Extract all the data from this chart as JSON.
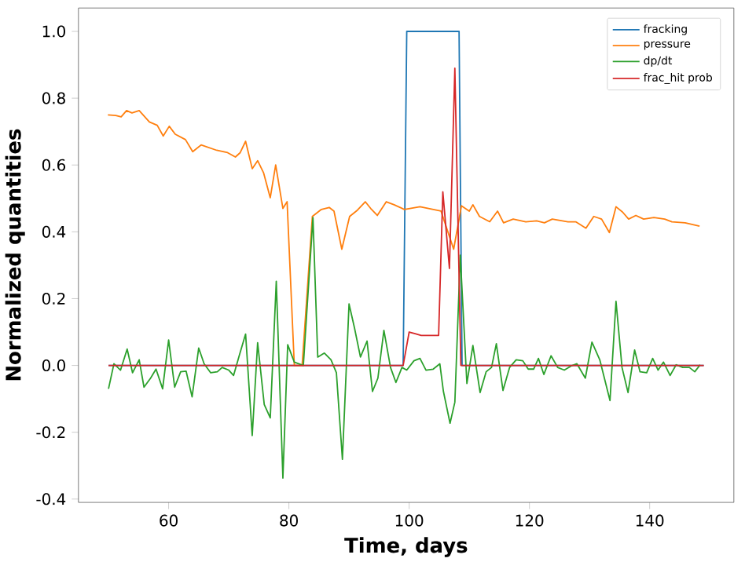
{
  "chart_data": {
    "type": "line",
    "xlabel": "Time, days",
    "ylabel": "Normalized quantities",
    "xlim": [
      45,
      154
    ],
    "ylim": [
      -0.41,
      1.07
    ],
    "xticks": [
      60,
      80,
      100,
      120,
      140
    ],
    "yticks": [
      -0.4,
      -0.2,
      {
        "value": 0,
        "label": "0.0"
      },
      0.2,
      0.4,
      0.6,
      0.8,
      {
        "value": 1,
        "label": "1.0"
      }
    ],
    "legend": "top right",
    "grid": false,
    "series": [
      {
        "name": "fracking",
        "color": "#1f77b4",
        "x": [
          50,
          99,
          99.6,
          108.3,
          108.8,
          149
        ],
        "values": [
          0,
          0,
          1,
          1,
          0,
          0
        ]
      },
      {
        "name": "pressure",
        "color": "#ff7f0e",
        "x": [
          49.9,
          51.2,
          52.1,
          53,
          53.9,
          55.1,
          56.8,
          58.1,
          59.1,
          60.1,
          61.1,
          62.8,
          64,
          65.4,
          68,
          69.8,
          71.1,
          71.9,
          72.8,
          73.9,
          74.8,
          75.8,
          76.9,
          77.8,
          79,
          79.7,
          80.9,
          82.2,
          83.9,
          85.4,
          86.7,
          87.5,
          88.8,
          90.1,
          91.4,
          92.7,
          93.6,
          94.7,
          96.2,
          97.5,
          99.2,
          101.8,
          105.3,
          107.4,
          108.7,
          110,
          110.6,
          111.7,
          113.4,
          114.7,
          115.7,
          117.3,
          119.4,
          121.2,
          122.5,
          123.8,
          126.4,
          127.7,
          129.4,
          130.7,
          132,
          133.3,
          134.4,
          135.5,
          136.5,
          137.7,
          139,
          140.7,
          142.5,
          143.7,
          145.9,
          148.3
        ],
        "values": [
          0.75,
          0.748,
          0.744,
          0.763,
          0.756,
          0.763,
          0.729,
          0.719,
          0.687,
          0.716,
          0.692,
          0.676,
          0.64,
          0.66,
          0.644,
          0.637,
          0.624,
          0.637,
          0.671,
          0.589,
          0.613,
          0.576,
          0.502,
          0.6,
          0.47,
          0.49,
          0.0,
          0.0,
          0.446,
          0.467,
          0.473,
          0.462,
          0.348,
          0.446,
          0.465,
          0.49,
          0.47,
          0.449,
          0.49,
          0.481,
          0.467,
          0.475,
          0.462,
          0.348,
          0.478,
          0.462,
          0.481,
          0.446,
          0.43,
          0.462,
          0.427,
          0.438,
          0.43,
          0.433,
          0.427,
          0.438,
          0.43,
          0.43,
          0.411,
          0.446,
          0.438,
          0.398,
          0.475,
          0.459,
          0.438,
          0.449,
          0.438,
          0.443,
          0.438,
          0.43,
          0.427,
          0.417
        ]
      },
      {
        "name": "dp/dt",
        "color": "#2ca02c",
        "x": [
          50,
          50.9,
          52,
          53.1,
          54,
          55.1,
          55.9,
          57,
          57.9,
          59,
          60,
          61,
          62,
          62.9,
          63.9,
          65,
          65.9,
          67,
          68.1,
          68.9,
          70,
          70.8,
          71.8,
          72.8,
          73.9,
          74.8,
          75.9,
          76.9,
          77.9,
          79,
          79.8,
          80.9,
          82.4,
          84,
          84.8,
          85.9,
          87,
          87.9,
          88.9,
          90,
          90.9,
          91.9,
          93,
          93.9,
          94.8,
          95.8,
          96.9,
          97.8,
          98.8,
          99.6,
          100.8,
          101.8,
          102.8,
          104,
          105.1,
          105.7,
          106.8,
          107.6,
          108.5,
          109.6,
          110.6,
          111.8,
          112.8,
          113.7,
          114.5,
          115.6,
          116.7,
          117.8,
          118.9,
          119.8,
          120.7,
          121.5,
          122.4,
          123.6,
          124.7,
          125.8,
          126.9,
          127.9,
          129.3,
          130.4,
          131.7,
          133.4,
          134.4,
          135.4,
          136.4,
          137.5,
          138.4,
          139.5,
          140.5,
          141.4,
          142.3,
          143.4,
          144.4,
          145.5,
          146.6,
          147.5,
          148.4
        ],
        "values": [
          -0.07,
          0.005,
          -0.014,
          0.049,
          -0.022,
          0.017,
          -0.065,
          -0.038,
          -0.011,
          -0.07,
          0.076,
          -0.065,
          -0.019,
          -0.017,
          -0.094,
          0.052,
          0.005,
          -0.022,
          -0.019,
          -0.006,
          -0.014,
          -0.03,
          0.033,
          0.094,
          -0.21,
          0.068,
          -0.117,
          -0.157,
          0.252,
          -0.337,
          0.062,
          0.01,
          0.0,
          0.443,
          0.025,
          0.037,
          0.017,
          -0.022,
          -0.281,
          0.184,
          0.113,
          0.025,
          0.073,
          -0.078,
          -0.038,
          0.105,
          -0.006,
          -0.051,
          -0.006,
          -0.014,
          0.014,
          0.021,
          -0.014,
          -0.011,
          0.005,
          -0.078,
          -0.173,
          -0.11,
          0.33,
          -0.054,
          0.06,
          -0.081,
          -0.019,
          -0.006,
          0.065,
          -0.075,
          -0.006,
          0.017,
          0.014,
          -0.011,
          -0.011,
          0.021,
          -0.027,
          0.029,
          -0.006,
          -0.014,
          -0.002,
          0.005,
          -0.038,
          0.07,
          0.017,
          -0.105,
          0.192,
          -0.006,
          -0.081,
          0.046,
          -0.019,
          -0.022,
          0.021,
          -0.014,
          0.01,
          -0.03,
          0.002,
          -0.006,
          -0.006,
          -0.019,
          0.002
        ]
      },
      {
        "name": "frac_hit prob",
        "color": "#d62728",
        "x": [
          50,
          99,
          100,
          101,
          102,
          103,
          104,
          104.9,
          105.6,
          106.7,
          107.6,
          108.6,
          149
        ],
        "values": [
          0,
          0,
          0.1,
          0.095,
          0.09,
          0.09,
          0.09,
          0.09,
          0.52,
          0.29,
          0.89,
          0,
          0
        ]
      }
    ]
  }
}
